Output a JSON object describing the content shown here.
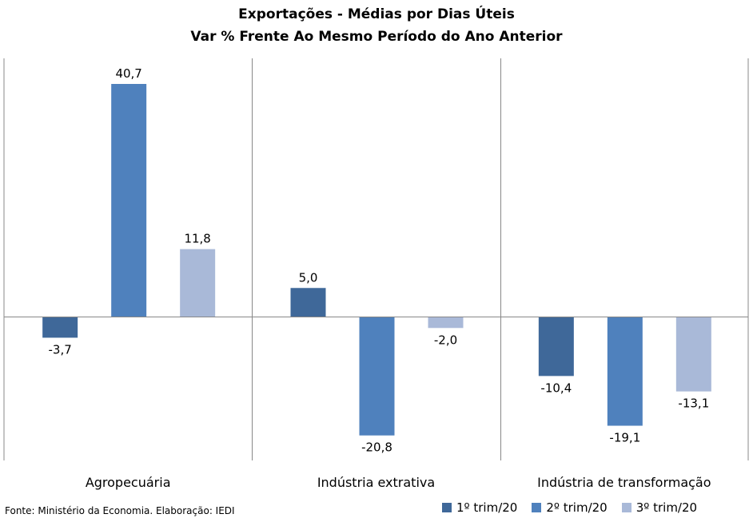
{
  "title": "Exportações - Médias por Dias Úteis",
  "subtitle": "Var % Frente Ao Mesmo Período do Ano Anterior",
  "source": "Fonte: Ministério da Economia. Elaboração: IEDI",
  "chart_data": {
    "type": "bar",
    "categories": [
      "Agropecuária",
      "Indústria extrativa",
      "Indústria de transformação"
    ],
    "series": [
      {
        "name": "1º trim/20",
        "values": [
          -3.7,
          5.0,
          -10.4
        ],
        "labels": [
          "-3,7",
          "5,0",
          "-10,4"
        ],
        "color": "#3f6899"
      },
      {
        "name": "2º trim/20",
        "values": [
          40.7,
          -20.8,
          -19.1
        ],
        "labels": [
          "40,7",
          "-20,8",
          "-19,1"
        ],
        "color": "#4f81bd"
      },
      {
        "name": "3º trim/20",
        "values": [
          11.8,
          -2.0,
          -13.1
        ],
        "labels": [
          "11,8",
          "-2,0",
          "-13,1"
        ],
        "color": "#a9b9d8"
      }
    ],
    "ylim": [
      -25,
      45
    ],
    "grid": false,
    "legend_position": "bottom-right"
  }
}
